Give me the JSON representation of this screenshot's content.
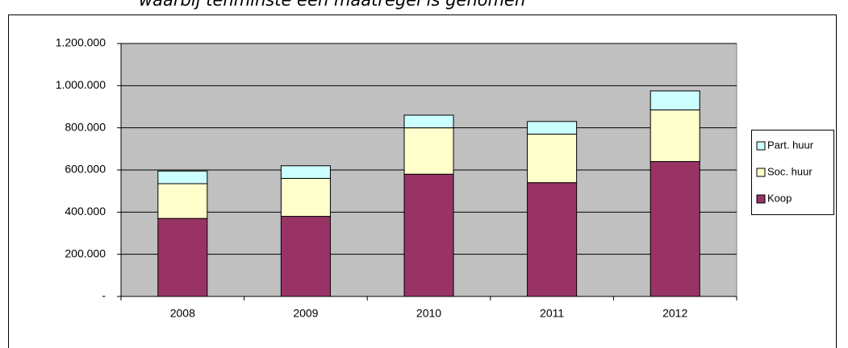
{
  "chart_data": {
    "type": "stacked_bar",
    "title": "waarbij tenminste een maatregel is genomen",
    "categories": [
      "2008",
      "2009",
      "2010",
      "2011",
      "2012"
    ],
    "series": [
      {
        "name": "Koop",
        "color": "#993366",
        "values": [
          370000,
          380000,
          580000,
          540000,
          640000
        ]
      },
      {
        "name": "Soc. huur",
        "color": "#ffffcc",
        "values": [
          165000,
          180000,
          220000,
          230000,
          245000
        ]
      },
      {
        "name": "Part. huur",
        "color": "#ccffff",
        "values": [
          60000,
          60000,
          60000,
          60000,
          90000
        ]
      }
    ],
    "ylim": [
      0,
      1200000
    ],
    "yticks": [
      {
        "value": 0,
        "label": "-"
      },
      {
        "value": 200000,
        "label": "200.000"
      },
      {
        "value": 400000,
        "label": "400.000"
      },
      {
        "value": 600000,
        "label": "600.000"
      },
      {
        "value": 800000,
        "label": "800.000"
      },
      {
        "value": 1000000,
        "label": "1.000.000"
      },
      {
        "value": 1200000,
        "label": "1.200.000"
      }
    ],
    "grid": true,
    "legend": "right"
  }
}
